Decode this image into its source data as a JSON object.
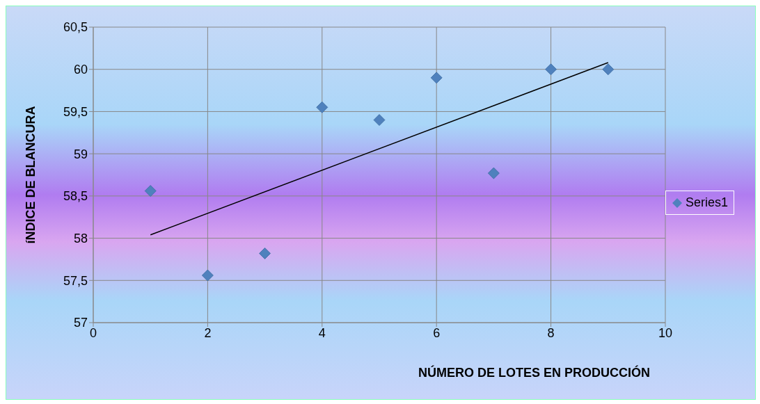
{
  "chart_data": {
    "type": "scatter",
    "xlabel": "NÚMERO DE LOTES EN PRODUCCIÓN",
    "ylabel": "íNDICE DE BLANCURA",
    "x": [
      1,
      2,
      3,
      4,
      5,
      6,
      7,
      8,
      9
    ],
    "series": [
      {
        "name": "Series1",
        "marker": "diamond",
        "color": "#4f81bd",
        "values": [
          58.56,
          57.56,
          57.82,
          59.55,
          59.4,
          59.9,
          58.77,
          60,
          60
        ]
      },
      {
        "type": "line",
        "marker": "none",
        "color": "#000000",
        "x": [
          1,
          9
        ],
        "values": [
          58.04,
          60.08
        ]
      }
    ],
    "xlim": [
      0,
      10
    ],
    "xticks": [
      0,
      2,
      4,
      6,
      8,
      10
    ],
    "ylim": [
      57,
      60.5
    ],
    "yticks": [
      {
        "value": 57,
        "label": "57"
      },
      {
        "value": 57.5,
        "label": "57,5"
      },
      {
        "value": 58,
        "label": "58"
      },
      {
        "value": 58.5,
        "label": "58,5"
      },
      {
        "value": 59,
        "label": "59"
      },
      {
        "value": 59.5,
        "label": "59,5"
      },
      {
        "value": 60,
        "label": "60"
      },
      {
        "value": 60.5,
        "label": "60,5"
      }
    ],
    "grid": true,
    "legend": "right"
  }
}
